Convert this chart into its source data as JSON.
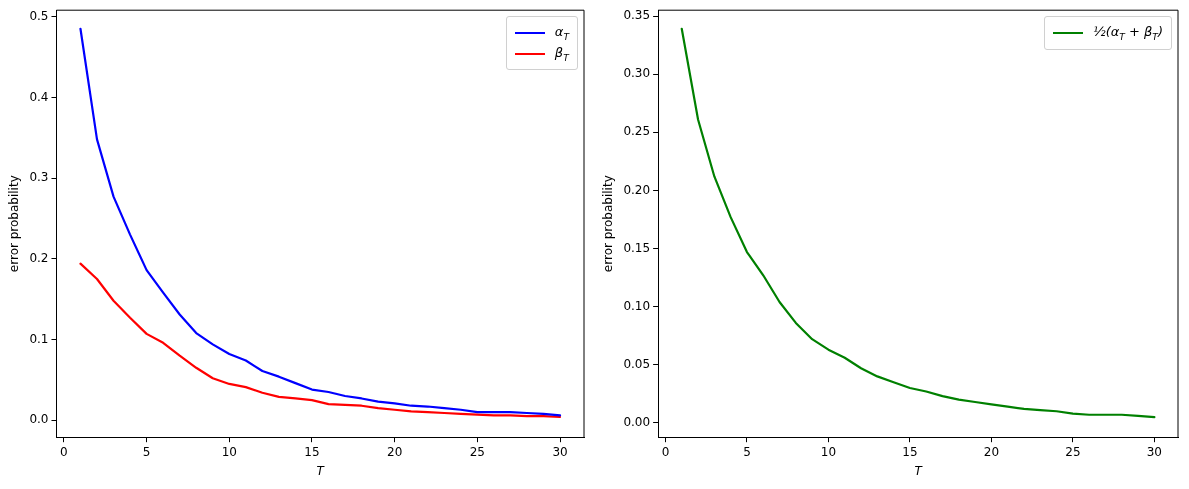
{
  "chart_data": [
    {
      "type": "line",
      "xlabel": "T",
      "ylabel": "error probability",
      "x": [
        1,
        2,
        3,
        4,
        5,
        6,
        7,
        8,
        9,
        10,
        11,
        12,
        13,
        14,
        15,
        16,
        17,
        18,
        19,
        20,
        21,
        22,
        23,
        24,
        25,
        26,
        27,
        28,
        29,
        30
      ],
      "series": [
        {
          "name": "α$_{T}$",
          "color": "#0000ff",
          "values": [
            0.485,
            0.348,
            0.277,
            0.23,
            0.186,
            0.158,
            0.131,
            0.108,
            0.094,
            0.082,
            0.074,
            0.061,
            0.054,
            0.046,
            0.038,
            0.035,
            0.03,
            0.027,
            0.023,
            0.021,
            0.018,
            0.017,
            0.015,
            0.013,
            0.01,
            0.01,
            0.01,
            0.009,
            0.008,
            0.006
          ]
        },
        {
          "name": "β$_{T}$",
          "color": "#ff0000",
          "values": [
            0.194,
            0.175,
            0.148,
            0.127,
            0.107,
            0.096,
            0.08,
            0.065,
            0.052,
            0.045,
            0.041,
            0.034,
            0.029,
            0.027,
            0.025,
            0.02,
            0.019,
            0.018,
            0.015,
            0.013,
            0.011,
            0.01,
            0.009,
            0.008,
            0.007,
            0.006,
            0.006,
            0.005,
            0.005,
            0.004
          ]
        }
      ],
      "xlim": [
        -0.45,
        31.45
      ],
      "ylim": [
        -0.021,
        0.508
      ],
      "xticks": [
        0,
        5,
        10,
        15,
        20,
        25,
        30
      ],
      "yticks": [
        {
          "value": 0,
          "label": "0.0"
        },
        {
          "value": 0.1,
          "label": "0.1"
        },
        {
          "value": 0.2,
          "label": "0.2"
        },
        {
          "value": 0.3,
          "label": "0.3"
        },
        {
          "value": 0.4,
          "label": "0.4"
        },
        {
          "value": 0.5,
          "label": "0.5"
        }
      ],
      "legend": "top right",
      "grid": false,
      "marker": "none",
      "line_style": "solid"
    },
    {
      "type": "line",
      "xlabel": "T",
      "ylabel": "error probability",
      "x": [
        1,
        2,
        3,
        4,
        5,
        6,
        7,
        8,
        9,
        10,
        11,
        12,
        13,
        14,
        15,
        16,
        17,
        18,
        19,
        20,
        21,
        22,
        23,
        24,
        25,
        26,
        27,
        28,
        29,
        30
      ],
      "series": [
        {
          "name": "½(α$_{T}$ + β$_{T}$)",
          "color": "#008000",
          "values": [
            0.339,
            0.261,
            0.212,
            0.177,
            0.147,
            0.127,
            0.104,
            0.086,
            0.072,
            0.063,
            0.056,
            0.047,
            0.04,
            0.035,
            0.03,
            0.027,
            0.023,
            0.02,
            0.018,
            0.016,
            0.014,
            0.012,
            0.011,
            0.01,
            0.008,
            0.007,
            0.007,
            0.007,
            0.006,
            0.005
          ]
        }
      ],
      "xlim": [
        -0.45,
        31.45
      ],
      "ylim": [
        -0.0123,
        0.355
      ],
      "xticks": [
        0,
        5,
        10,
        15,
        20,
        25,
        30
      ],
      "yticks": [
        {
          "value": 0,
          "label": "0.00"
        },
        {
          "value": 0.05,
          "label": "0.05"
        },
        {
          "value": 0.1,
          "label": "0.10"
        },
        {
          "value": 0.15,
          "label": "0.15"
        },
        {
          "value": 0.2,
          "label": "0.20"
        },
        {
          "value": 0.25,
          "label": "0.25"
        },
        {
          "value": 0.3,
          "label": "0.30"
        },
        {
          "value": 0.35,
          "label": "0.35"
        }
      ],
      "legend": "top right",
      "grid": false,
      "marker": "none",
      "line_style": "solid"
    }
  ]
}
